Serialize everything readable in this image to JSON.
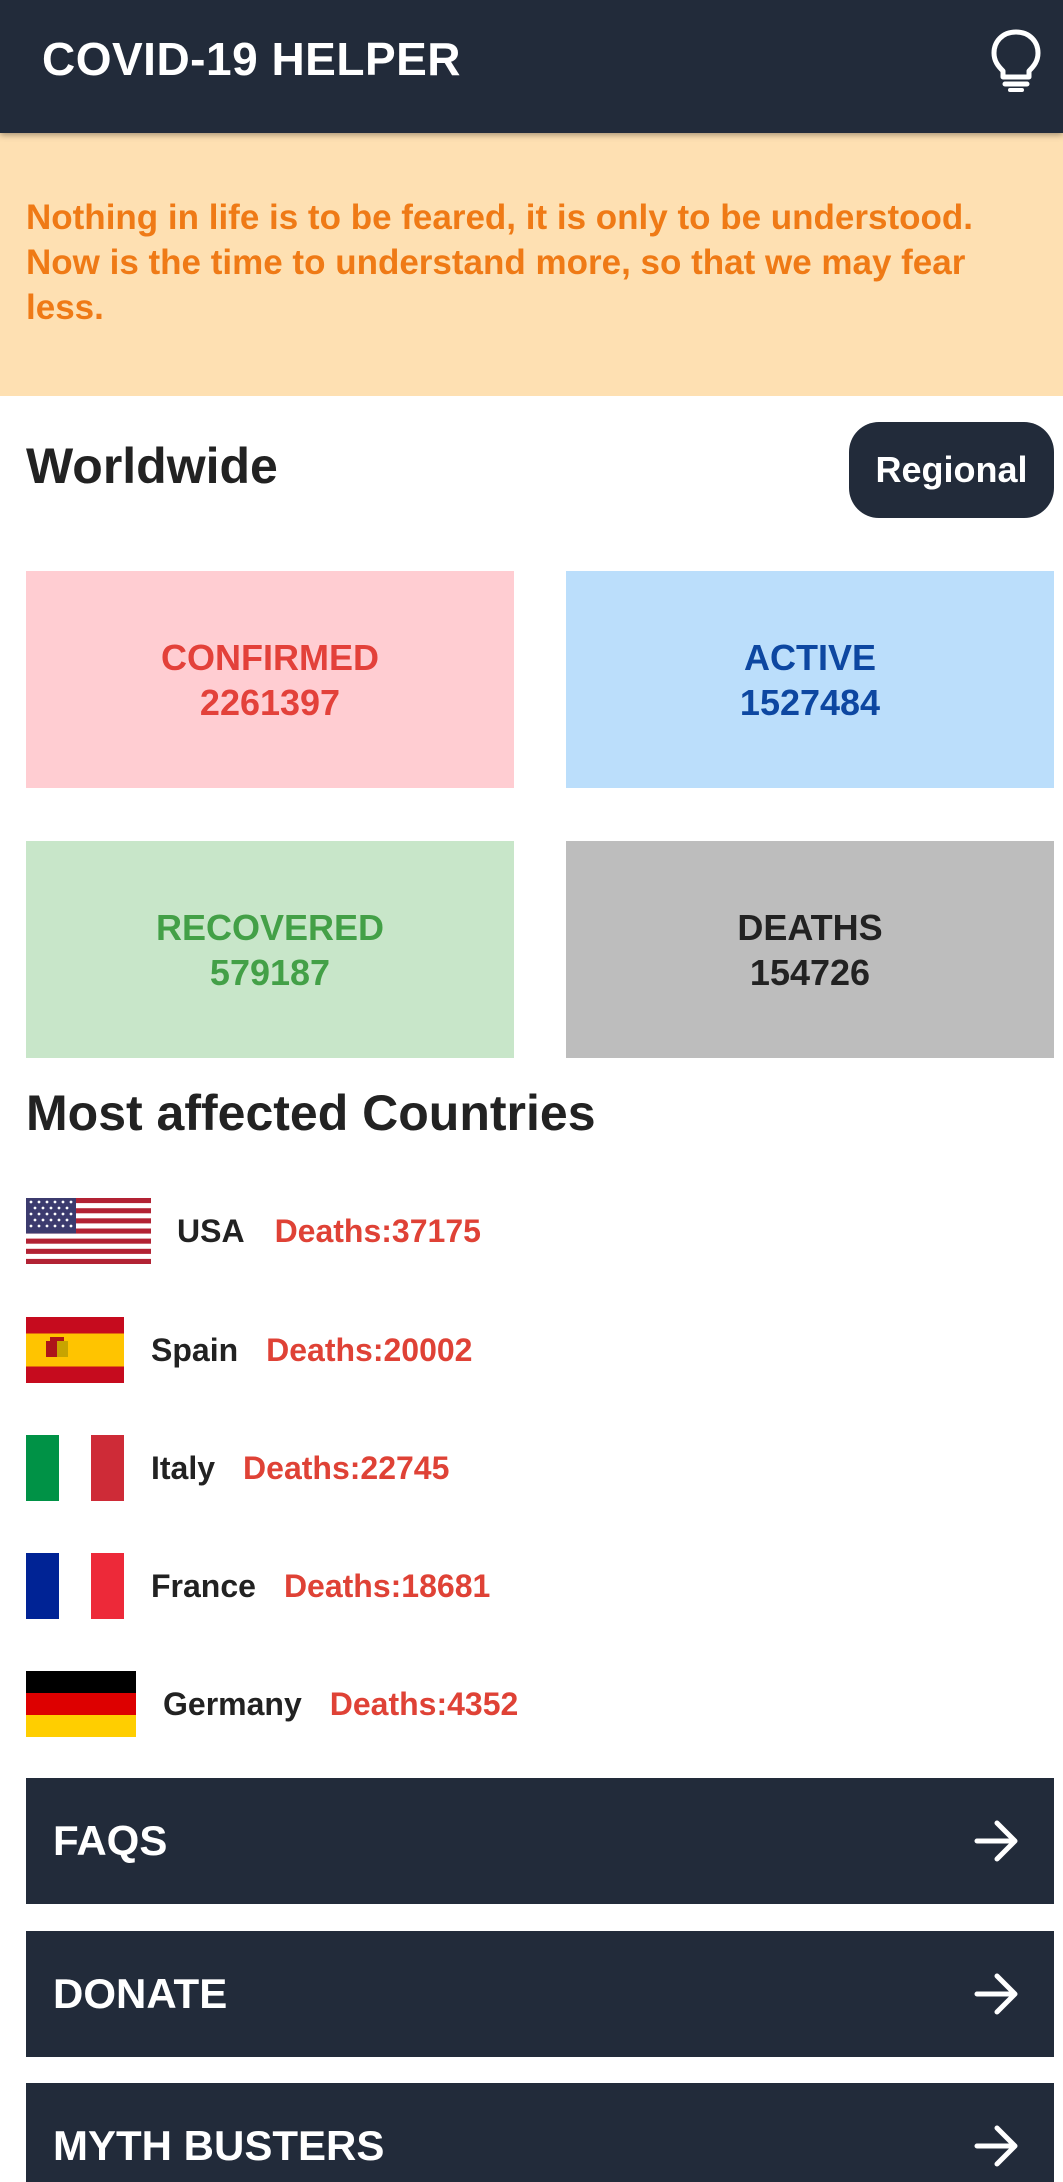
{
  "app_bar": {
    "title": "COVID-19 HELPER",
    "icon": "lightbulb-icon"
  },
  "banner": {
    "quote": "Nothing in life is to be feared, it is only to be understood. Now is the time to understand more, so that we may fear less."
  },
  "worldwide": {
    "title": "Worldwide",
    "regional_label": "Regional",
    "stats": {
      "confirmed": {
        "label": "CONFIRMED",
        "value": "2261397"
      },
      "active": {
        "label": "ACTIVE",
        "value": "1527484"
      },
      "recovered": {
        "label": "RECOVERED",
        "value": "579187"
      },
      "deaths": {
        "label": "DEATHS",
        "value": "154726"
      }
    }
  },
  "countries": {
    "title": "Most affected Countries",
    "items": [
      {
        "name": "USA",
        "deaths": "Deaths:37175",
        "flag": "usa-flag"
      },
      {
        "name": "Spain",
        "deaths": "Deaths:20002",
        "flag": "spain-flag"
      },
      {
        "name": "Italy",
        "deaths": "Deaths:22745",
        "flag": "italy-flag"
      },
      {
        "name": "France",
        "deaths": "Deaths:18681",
        "flag": "france-flag"
      },
      {
        "name": "Germany",
        "deaths": "Deaths:4352",
        "flag": "germany-flag"
      }
    ]
  },
  "nav": {
    "faqs": "FAQS",
    "donate": "DONATE",
    "myth_busters": "MYTH BUSTERS",
    "arrow_icon": "arrow-right-icon"
  },
  "colors": {
    "app_bar": "#222b3a",
    "banner_bg": "#fee0b2",
    "banner_text": "#ef7a16",
    "confirmed_bg": "#ffcdd2",
    "confirmed_text": "#e3413a",
    "active_bg": "#bbdefb",
    "active_text": "#0d47a1",
    "recovered_bg": "#c8e6c9",
    "recovered_text": "#43a047",
    "deaths_bg": "#bdbdbd",
    "deaths_text": "#222222",
    "country_deaths_text": "#df4236"
  }
}
